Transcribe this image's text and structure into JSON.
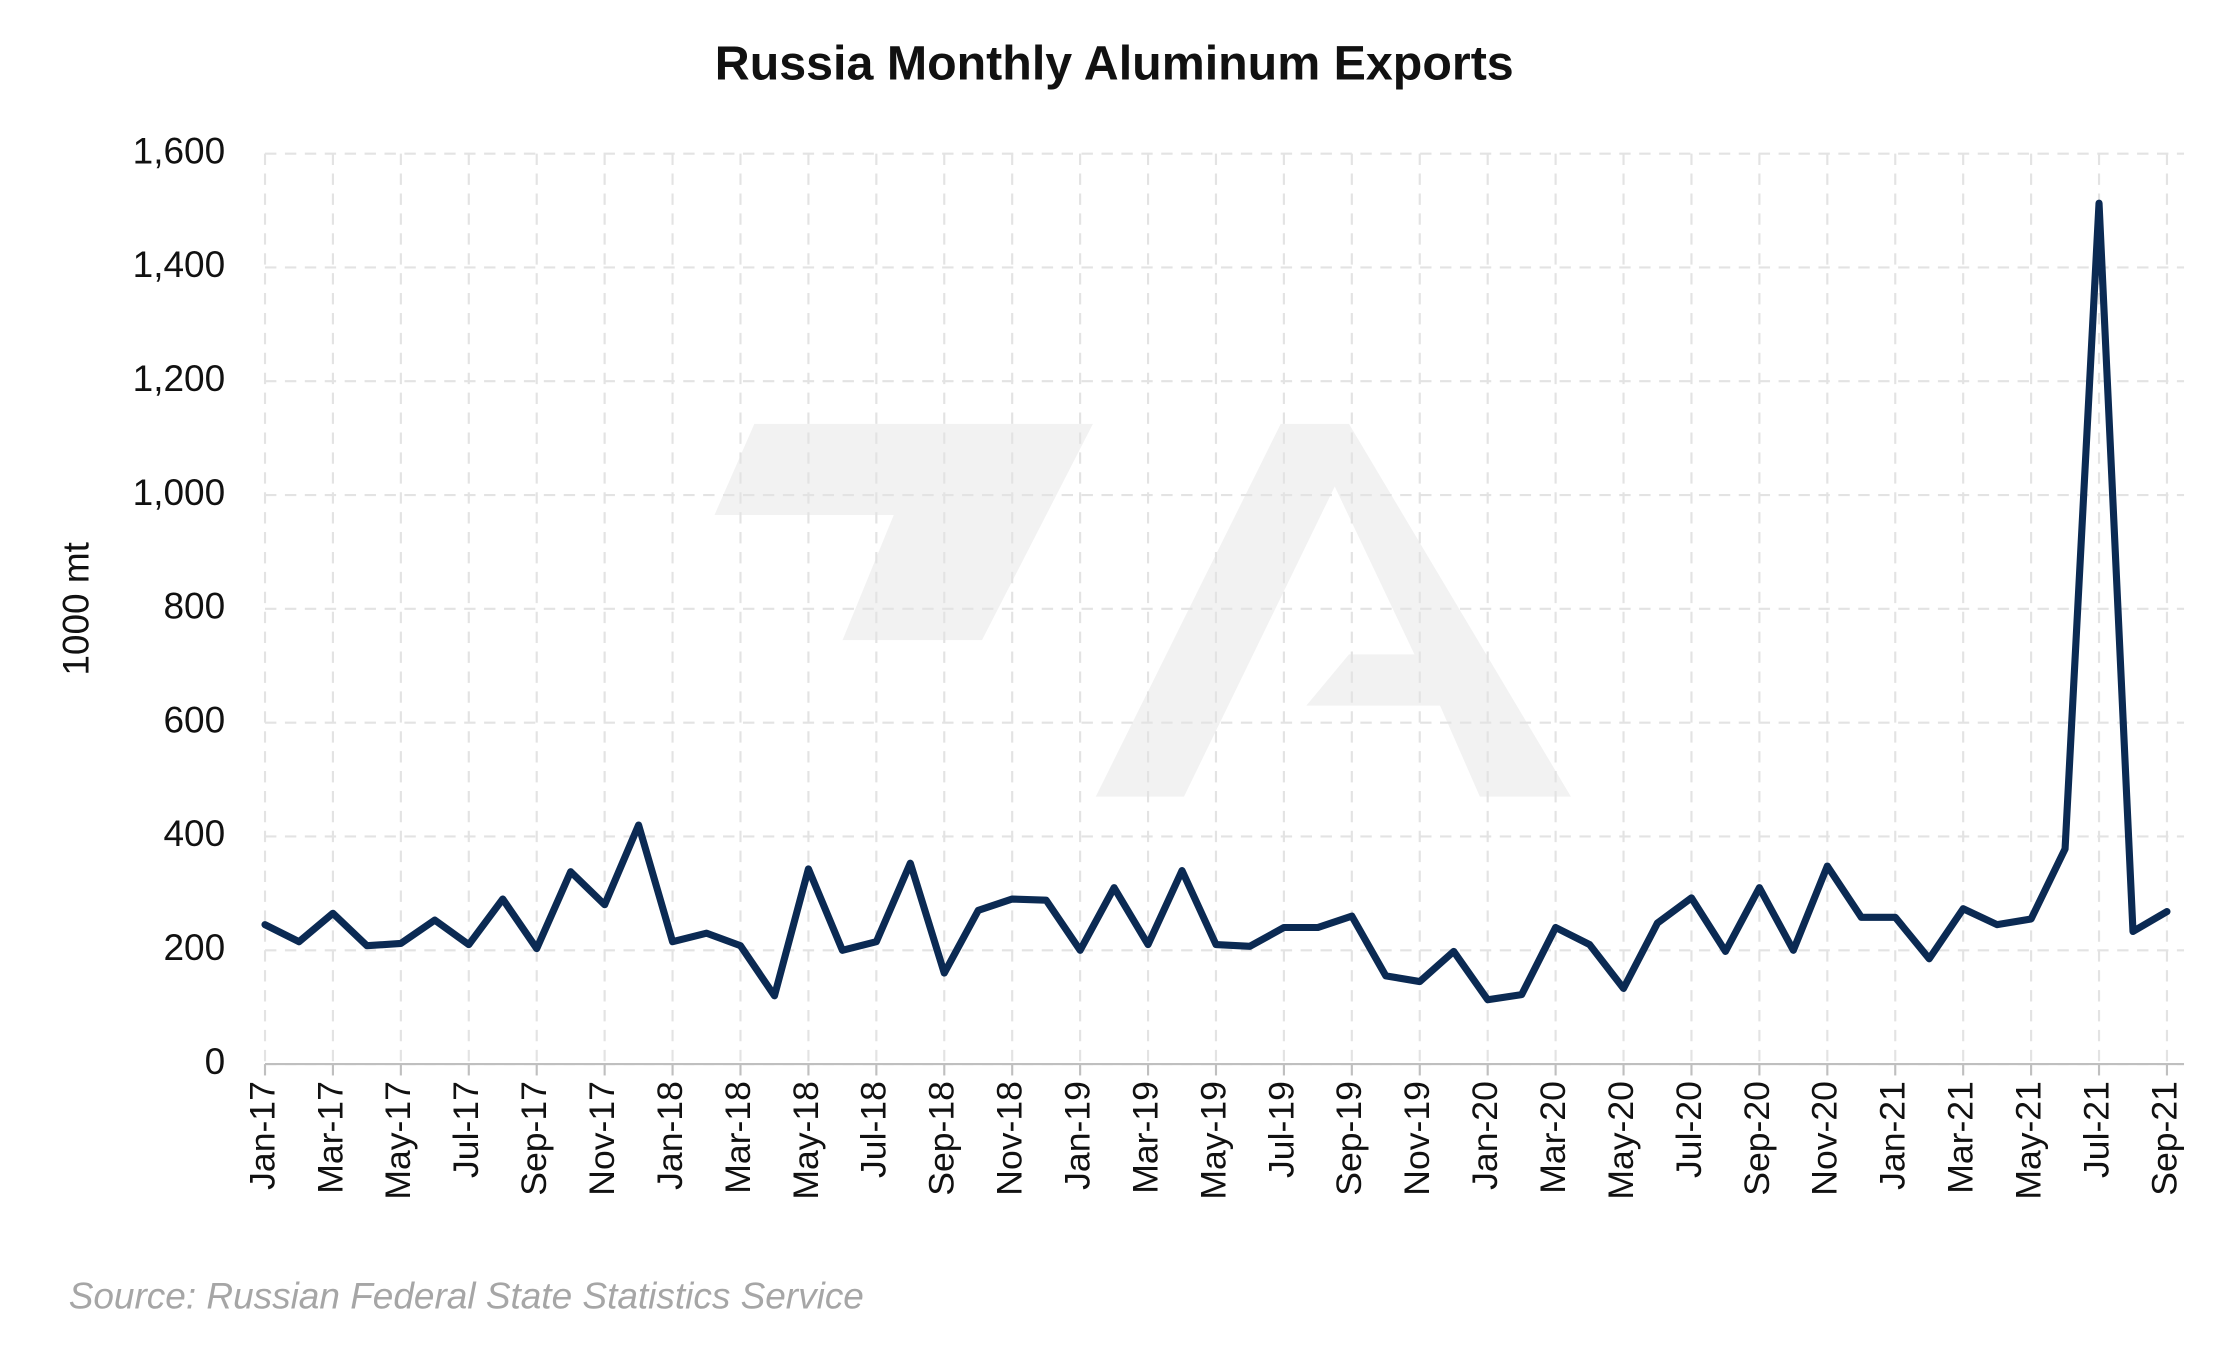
{
  "chart_data": {
    "type": "line",
    "title": "Russia Monthly Aluminum Exports",
    "y_label": "1000 mt",
    "source": "Source: Russian Federal State Statistics Service",
    "categories": [
      "Jan-17",
      null,
      "Mar-17",
      null,
      "May-17",
      null,
      "Jul-17",
      null,
      "Sep-17",
      null,
      "Nov-17",
      null,
      "Jan-18",
      null,
      "Mar-18",
      null,
      "May-18",
      null,
      "Jul-18",
      null,
      "Sep-18",
      null,
      "Nov-18",
      null,
      "Jan-19",
      null,
      "Mar-19",
      null,
      "May-19",
      null,
      "Jul-19",
      null,
      "Sep-19",
      null,
      "Nov-19",
      null,
      "Jan-20",
      null,
      "Mar-20",
      null,
      "May-20",
      null,
      "Jul-20",
      null,
      "Sep-20",
      null,
      "Nov-20",
      null,
      "Jan-21",
      null,
      "Mar-21",
      null,
      "May-21",
      null,
      "Jul-21",
      null,
      "Sep-21"
    ],
    "values": [
      245,
      215,
      265,
      208,
      212,
      253,
      210,
      290,
      203,
      338,
      280,
      420,
      215,
      230,
      208,
      120,
      343,
      200,
      215,
      353,
      160,
      270,
      290,
      288,
      200,
      310,
      210,
      340,
      210,
      207,
      240,
      240,
      260,
      155,
      145,
      198,
      113,
      122,
      240,
      210,
      133,
      248,
      292,
      198,
      310,
      200,
      348,
      258,
      258,
      185,
      273,
      245,
      255,
      378,
      1513,
      233,
      268
    ],
    "color": "#0b2a53",
    "ylim": [
      0,
      1600
    ],
    "yticks": [
      0,
      200,
      400,
      600,
      800,
      {
        "value": 1000,
        "label": "1,000"
      },
      {
        "value": 1200,
        "label": "1,200"
      },
      {
        "value": 1400,
        "label": "1,400"
      },
      {
        "value": 1600,
        "label": "1,600"
      }
    ],
    "grid": true
  }
}
